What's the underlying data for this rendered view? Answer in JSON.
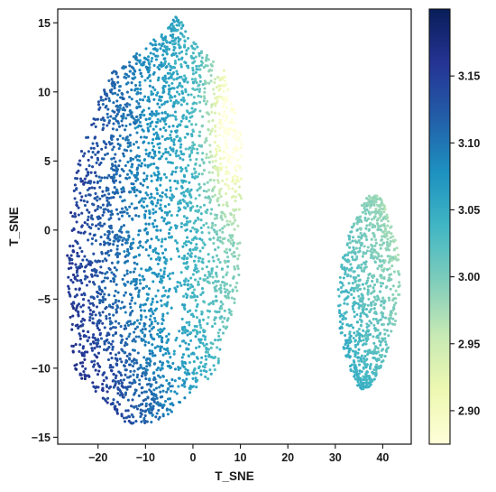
{
  "chart_data": {
    "type": "scatter",
    "title": "",
    "xlabel": "T_SNE",
    "ylabel": "T_SNE",
    "xlim": [
      -28.5,
      46
    ],
    "ylim": [
      -15.5,
      16
    ],
    "xticks": [
      -20,
      -10,
      0,
      10,
      20,
      30,
      40
    ],
    "yticks": [
      -15,
      -10,
      -5,
      0,
      5,
      10,
      15
    ],
    "grid": false,
    "colorbar": {
      "label": "",
      "range": [
        2.875,
        3.2
      ],
      "ticks": [
        2.9,
        2.95,
        3.0,
        3.05,
        3.1,
        3.15
      ],
      "tick_labels": [
        "2.90",
        "2.95",
        "3.00",
        "3.05",
        "3.10",
        "3.15"
      ],
      "colormap": "YlGnBu",
      "colors": [
        "#ffffd9",
        "#edf8b1",
        "#c7e9b4",
        "#7fcdbb",
        "#41b6c4",
        "#1d91c0",
        "#225ea8",
        "#253494",
        "#081d58"
      ]
    },
    "clusters": [
      {
        "x_range": [
          -27,
          10.5
        ],
        "y_range": [
          -14,
          15.7
        ],
        "approx_points": 3200,
        "value_trend": "high (~3.15) on left edge, decreasing to low (~2.93) at right edge near x=8, y=7"
      },
      {
        "x_range": [
          30,
          44
        ],
        "y_range": [
          -11.5,
          2.5
        ],
        "approx_points": 900,
        "value_trend": "mid (~3.07) at lower left, decreasing to ~3.00 at upper right"
      }
    ]
  }
}
